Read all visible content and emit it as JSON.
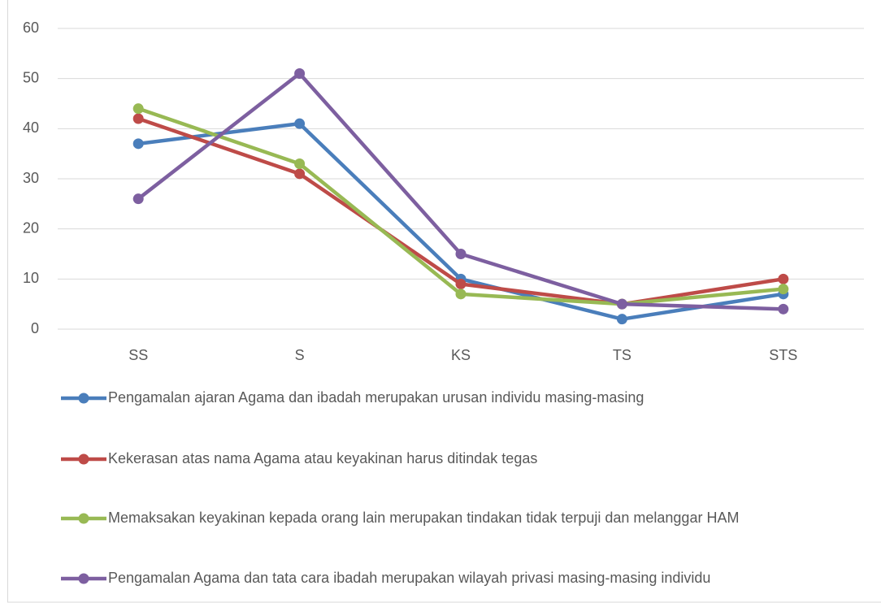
{
  "chart_data": {
    "type": "line",
    "categories": [
      "SS",
      "S",
      "KS",
      "TS",
      "STS"
    ],
    "series": [
      {
        "name": "Pengamalan ajaran Agama dan ibadah merupakan urusan individu masing-masing",
        "color": "#4a7ebb",
        "values": [
          37,
          41,
          10,
          2,
          7
        ]
      },
      {
        "name": "Kekerasan atas nama Agama atau keyakinan harus ditindak tegas",
        "color": "#be4b48",
        "values": [
          42,
          31,
          9,
          5,
          10
        ]
      },
      {
        "name": "Memaksakan keyakinan kepada orang lain merupakan tindakan tidak terpuji dan melanggar HAM",
        "color": "#98b954",
        "values": [
          44,
          33,
          7,
          5,
          8
        ]
      },
      {
        "name": "Pengamalan Agama dan tata cara ibadah merupakan wilayah privasi masing-masing individu",
        "color": "#7d5fa0",
        "values": [
          26,
          51,
          15,
          5,
          4
        ]
      }
    ],
    "ylim": [
      0,
      60
    ],
    "yticks": [
      0,
      10,
      20,
      30,
      40,
      50,
      60
    ],
    "grid": true,
    "legend": "bottom"
  }
}
